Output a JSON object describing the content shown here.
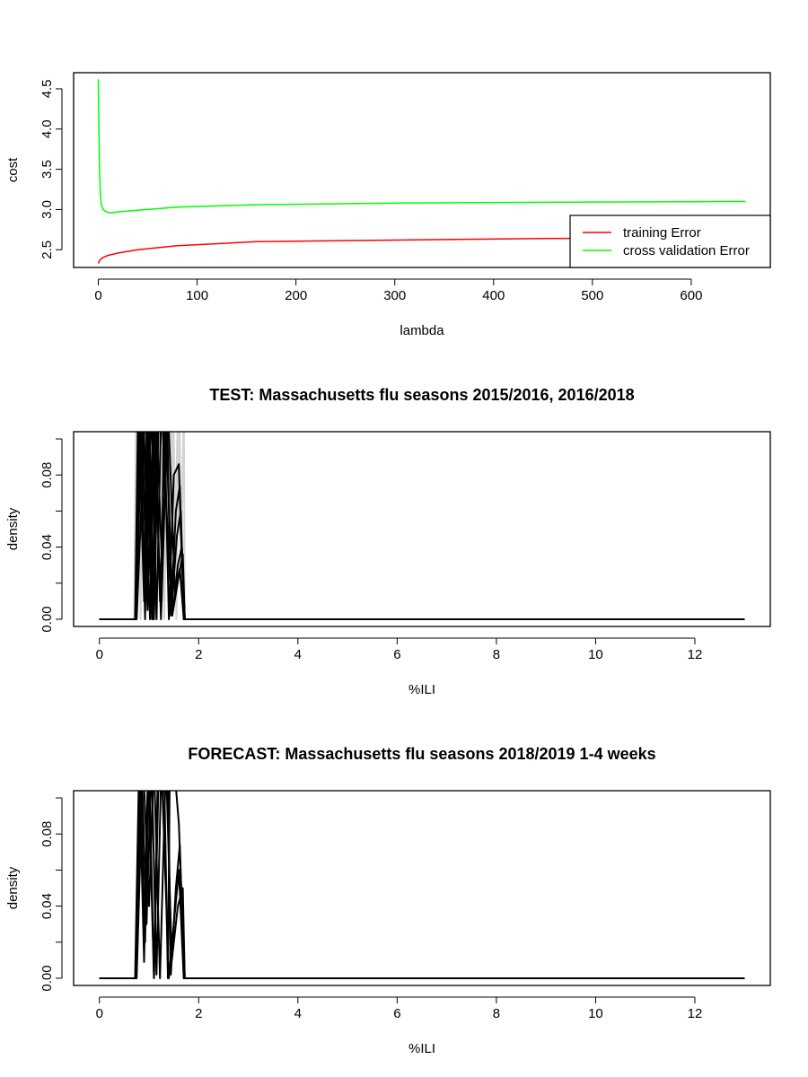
{
  "chart_data": [
    {
      "type": "line",
      "title": "",
      "xlabel": "lambda",
      "ylabel": "cost",
      "xlim": [
        -25,
        680
      ],
      "ylim": [
        2.28,
        4.7
      ],
      "xticks": [
        0,
        100,
        200,
        300,
        400,
        500,
        600
      ],
      "yticks": [
        2.5,
        3.0,
        3.5,
        4.0,
        4.5
      ],
      "xtick_labels": [
        "0",
        "100",
        "200",
        "300",
        "400",
        "500",
        "600"
      ],
      "ytick_labels": [
        "2.5",
        "3.0",
        "3.5",
        "4.0",
        "4.5"
      ],
      "legend_position": "bottom-right",
      "grid": false,
      "series": [
        {
          "name": "training Error",
          "color": "#ff0000",
          "x": [
            0,
            1,
            3,
            6,
            10,
            20,
            40,
            80,
            160,
            300,
            450,
            655
          ],
          "y": [
            2.33,
            2.36,
            2.39,
            2.41,
            2.43,
            2.46,
            2.5,
            2.55,
            2.6,
            2.62,
            2.64,
            2.65
          ]
        },
        {
          "name": "cross validation Error",
          "color": "#00ff00",
          "x": [
            0,
            1,
            2,
            3,
            5,
            8,
            12,
            20,
            40,
            80,
            160,
            300,
            450,
            655
          ],
          "y": [
            4.62,
            3.6,
            3.2,
            3.06,
            3.0,
            2.97,
            2.96,
            2.97,
            2.99,
            3.03,
            3.06,
            3.08,
            3.09,
            3.1
          ]
        }
      ]
    },
    {
      "type": "line",
      "title": "TEST: Massachusetts  flu seasons 2015/2016, 2016/2018",
      "xlabel": "%ILI",
      "ylabel": "density",
      "xlim": [
        -0.52,
        13.52
      ],
      "ylim": [
        -0.004,
        0.104
      ],
      "xticks": [
        0,
        2,
        4,
        6,
        8,
        10,
        12
      ],
      "yticks": [
        0.0,
        0.02,
        0.04,
        0.06,
        0.08,
        0.1
      ],
      "xtick_labels": [
        "0",
        "2",
        "4",
        "6",
        "8",
        "10",
        "12"
      ],
      "ytick_labels": [
        "0.00",
        "",
        "0.04",
        "",
        "0.08",
        ""
      ],
      "grid": false,
      "series": [
        {
          "color": "#d3d3d3",
          "x": [
            0,
            0.7,
            0.74,
            0.8,
            0.86,
            0.92,
            0.98,
            1.04,
            1.1,
            1.16,
            1.22,
            1.28,
            1.34,
            1.4,
            1.46,
            1.52,
            1.58,
            1.64,
            1.7,
            1.72,
            13
          ],
          "y": [
            0,
            0,
            0.12,
            0.03,
            0.12,
            0.0,
            0.12,
            0.02,
            0.12,
            0.0,
            0.12,
            0.01,
            0.12,
            0.0,
            0.12,
            0.03,
            0.12,
            0.02,
            0.12,
            0,
            0
          ]
        },
        {
          "color": "#d3d3d3",
          "x": [
            0,
            0.71,
            0.77,
            0.83,
            0.89,
            0.95,
            1.01,
            1.07,
            1.13,
            1.19,
            1.25,
            1.31,
            1.37,
            1.43,
            1.49,
            1.55,
            1.61,
            1.67,
            1.73,
            13
          ],
          "y": [
            0,
            0,
            0.12,
            0.0,
            0.12,
            0.02,
            0.12,
            0.0,
            0.12,
            0.03,
            0.12,
            0.0,
            0.12,
            0.02,
            0.12,
            0.0,
            0.12,
            0.01,
            0,
            0
          ]
        },
        {
          "color": "#000000",
          "x": [
            0,
            0.72,
            0.78,
            0.9,
            0.96,
            1.08,
            1.14,
            1.26,
            1.3,
            1.4,
            1.5,
            1.6,
            1.64,
            1.72,
            13
          ],
          "y": [
            0,
            0,
            0.12,
            0.01,
            0.12,
            0.0,
            0.12,
            0.03,
            0.12,
            0.0,
            0.08,
            0.086,
            0.05,
            0,
            0
          ]
        },
        {
          "color": "#000000",
          "x": [
            0,
            0.73,
            0.82,
            0.92,
            1.0,
            1.1,
            1.2,
            1.36,
            1.44,
            1.54,
            1.62,
            1.7,
            13
          ],
          "y": [
            0,
            0,
            0.12,
            0.0,
            0.12,
            0.0,
            0.12,
            0.12,
            0.002,
            0.06,
            0.074,
            0,
            0
          ]
        },
        {
          "color": "#000000",
          "x": [
            0,
            0.74,
            0.85,
            0.95,
            1.05,
            1.15,
            1.25,
            1.45,
            1.56,
            1.64,
            1.71,
            13
          ],
          "y": [
            0,
            0,
            0.12,
            0.02,
            0.12,
            0.0,
            0.12,
            0.005,
            0.046,
            0.06,
            0,
            0
          ]
        },
        {
          "color": "#000000",
          "x": [
            0,
            0.72,
            0.88,
            1.02,
            1.12,
            1.22,
            1.34,
            1.47,
            1.58,
            1.66,
            1.72,
            13
          ],
          "y": [
            0,
            0,
            0.12,
            0.0,
            0.12,
            0.01,
            0.12,
            0.002,
            0.03,
            0.04,
            0,
            0
          ]
        },
        {
          "color": "#000000",
          "x": [
            0,
            0.75,
            0.93,
            1.06,
            1.18,
            1.32,
            1.48,
            1.6,
            1.68,
            1.72,
            13
          ],
          "y": [
            0,
            0,
            0.12,
            0.0,
            0.12,
            0.12,
            0.004,
            0.024,
            0.036,
            0,
            0
          ]
        },
        {
          "color": "#000000",
          "x": [
            0,
            0.73,
            0.84,
            0.97,
            1.1,
            1.24,
            1.38,
            1.52,
            1.62,
            1.7,
            13
          ],
          "y": [
            0,
            0,
            0.12,
            0.005,
            0.12,
            0.0,
            0.12,
            0.015,
            0.028,
            0,
            0
          ]
        }
      ]
    },
    {
      "type": "line",
      "title": "FORECAST: Massachusetts flu seasons 2018/2019 1-4 weeks",
      "xlabel": "%ILI",
      "ylabel": "density",
      "xlim": [
        -0.52,
        13.52
      ],
      "ylim": [
        -0.004,
        0.104
      ],
      "xticks": [
        0,
        2,
        4,
        6,
        8,
        10,
        12
      ],
      "yticks": [
        0.0,
        0.02,
        0.04,
        0.06,
        0.08,
        0.1
      ],
      "xtick_labels": [
        "0",
        "2",
        "4",
        "6",
        "8",
        "10",
        "12"
      ],
      "ytick_labels": [
        "0.00",
        "",
        "0.04",
        "",
        "0.08",
        ""
      ],
      "grid": false,
      "series": [
        {
          "color": "#000000",
          "x": [
            0,
            0.72,
            0.8,
            0.9,
            0.98,
            1.1,
            1.18,
            1.3,
            1.38,
            1.42,
            1.5,
            1.6,
            1.65,
            1.72,
            13
          ],
          "y": [
            0,
            0,
            0.12,
            0.009,
            0.12,
            0.0,
            0.12,
            0.12,
            0.0,
            0.12,
            0.12,
            0.086,
            0.05,
            0,
            0
          ]
        },
        {
          "color": "#000000",
          "x": [
            0,
            0.73,
            0.82,
            0.92,
            1.0,
            1.1,
            1.2,
            1.38,
            1.44,
            1.54,
            1.62,
            1.7,
            13
          ],
          "y": [
            0,
            0,
            0.12,
            0.02,
            0.12,
            0.001,
            0.12,
            0.12,
            0.002,
            0.05,
            0.074,
            0,
            0
          ]
        },
        {
          "color": "#000000",
          "x": [
            0,
            0.74,
            0.85,
            0.95,
            1.05,
            1.15,
            1.25,
            1.4,
            1.5,
            1.6,
            1.7,
            13
          ],
          "y": [
            0,
            0,
            0.12,
            0.03,
            0.12,
            0.002,
            0.12,
            0.0,
            0.03,
            0.06,
            0,
            0
          ]
        },
        {
          "color": "#000000",
          "x": [
            0,
            0.75,
            0.88,
            1.0,
            1.1,
            1.22,
            1.34,
            1.46,
            1.58,
            1.68,
            1.72,
            13
          ],
          "y": [
            0,
            0,
            0.12,
            0.04,
            0.12,
            0.0,
            0.12,
            0.01,
            0.04,
            0.05,
            0,
            0
          ]
        }
      ]
    }
  ]
}
